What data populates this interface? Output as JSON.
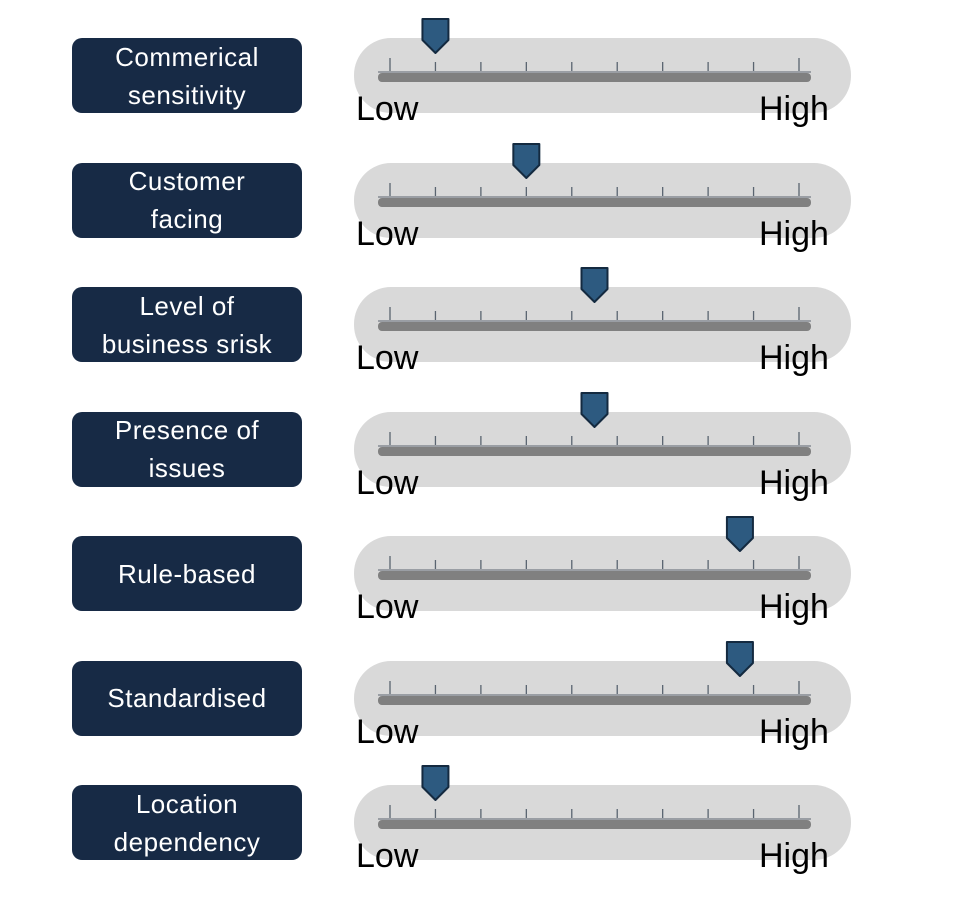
{
  "scale": {
    "low_label": "Low",
    "high_label": "High",
    "tick_count": 10,
    "min": 0,
    "max": 9
  },
  "colors": {
    "label_bg": "#172a45",
    "label_text": "#ffffff",
    "track_bg": "#d9d9d9",
    "bar": "#808080",
    "tick": "#5a6470",
    "marker_fill": "#2d5a80",
    "marker_stroke": "#142a40"
  },
  "rows": [
    {
      "label_lines": [
        "Commerical",
        "sensitivity"
      ],
      "level": 1
    },
    {
      "label_lines": [
        "Customer",
        "facing"
      ],
      "level": 3
    },
    {
      "label_lines": [
        "Level of",
        "business srisk"
      ],
      "level": 4.5
    },
    {
      "label_lines": [
        "Presence of",
        "issues"
      ],
      "level": 4.5
    },
    {
      "label_lines": [
        "Rule-based"
      ],
      "level": 7.7
    },
    {
      "label_lines": [
        "Standardised"
      ],
      "level": 7.7
    },
    {
      "label_lines": [
        "Location",
        "dependency"
      ],
      "level": 1
    }
  ]
}
